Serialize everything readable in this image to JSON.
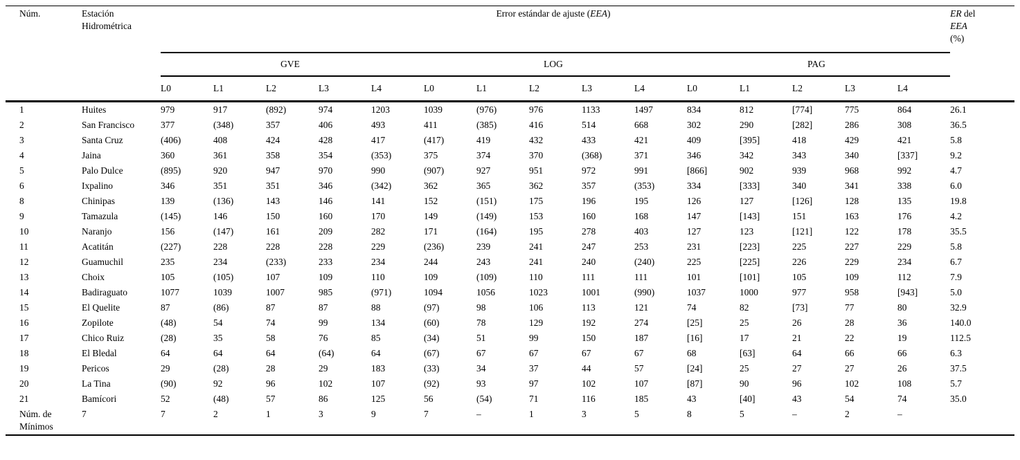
{
  "table": {
    "header": {
      "num": "Núm.",
      "station": "Estación Hidrométrica",
      "eea_prefix": "Error estándar de ajuste (",
      "eea_italic": "EEA",
      "eea_suffix": ")",
      "er_line1_italic": "ER",
      "er_line1_text": " del",
      "er_line2_italic": "EEA",
      "er_line3": "(%)",
      "groups": [
        "GVE",
        "LOG",
        "PAG"
      ],
      "levels": [
        "L0",
        "L1",
        "L2",
        "L3",
        "L4"
      ]
    },
    "rows": [
      {
        "num": "1",
        "station": "Huites",
        "values": [
          "979",
          "917",
          "(892)",
          "974",
          "1203",
          "1039",
          "(976)",
          "976",
          "1133",
          "1497",
          "834",
          "812",
          "[774]",
          "775",
          "864"
        ],
        "er": "26.1"
      },
      {
        "num": "2",
        "station": "San Francisco",
        "values": [
          "377",
          "(348)",
          "357",
          "406",
          "493",
          "411",
          "(385)",
          "416",
          "514",
          "668",
          "302",
          "290",
          "[282]",
          "286",
          "308"
        ],
        "er": "36.5"
      },
      {
        "num": "3",
        "station": "Santa Cruz",
        "values": [
          "(406)",
          "408",
          "424",
          "428",
          "417",
          "(417)",
          "419",
          "432",
          "433",
          "421",
          "409",
          "[395]",
          "418",
          "429",
          "421"
        ],
        "er": "5.8"
      },
      {
        "num": "4",
        "station": "Jaina",
        "values": [
          "360",
          "361",
          "358",
          "354",
          "(353)",
          "375",
          "374",
          "370",
          "(368)",
          "371",
          "346",
          "342",
          "343",
          "340",
          "[337]"
        ],
        "er": "9.2"
      },
      {
        "num": "5",
        "station": "Palo Dulce",
        "values": [
          "(895)",
          "920",
          "947",
          "970",
          "990",
          "(907)",
          "927",
          "951",
          "972",
          "991",
          "[866]",
          "902",
          "939",
          "968",
          "992"
        ],
        "er": "4.7"
      },
      {
        "num": "6",
        "station": "Ixpalino",
        "values": [
          "346",
          "351",
          "351",
          "346",
          "(342)",
          "362",
          "365",
          "362",
          "357",
          "(353)",
          "334",
          "[333]",
          "340",
          "341",
          "338"
        ],
        "er": "6.0"
      },
      {
        "num": "8",
        "station": "Chinipas",
        "values": [
          "139",
          "(136)",
          "143",
          "146",
          "141",
          "152",
          "(151)",
          "175",
          "196",
          "195",
          "126",
          "127",
          "[126]",
          "128",
          "135"
        ],
        "er": "19.8"
      },
      {
        "num": "9",
        "station": "Tamazula",
        "values": [
          "(145)",
          "146",
          "150",
          "160",
          "170",
          "149",
          "(149)",
          "153",
          "160",
          "168",
          "147",
          "[143]",
          "151",
          "163",
          "176"
        ],
        "er": "4.2"
      },
      {
        "num": "10",
        "station": "Naranjo",
        "values": [
          "156",
          "(147)",
          "161",
          "209",
          "282",
          "171",
          "(164)",
          "195",
          "278",
          "403",
          "127",
          "123",
          "[121]",
          "122",
          "178"
        ],
        "er": "35.5"
      },
      {
        "num": "11",
        "station": "Acatitán",
        "values": [
          "(227)",
          "228",
          "228",
          "228",
          "229",
          "(236)",
          "239",
          "241",
          "247",
          "253",
          "231",
          "[223]",
          "225",
          "227",
          "229"
        ],
        "er": "5.8"
      },
      {
        "num": "12",
        "station": "Guamuchil",
        "values": [
          "235",
          "234",
          "(233)",
          "233",
          "234",
          "244",
          "243",
          "241",
          "240",
          "(240)",
          "225",
          "[225]",
          "226",
          "229",
          "234"
        ],
        "er": "6.7"
      },
      {
        "num": "13",
        "station": "Choix",
        "values": [
          "105",
          "(105)",
          "107",
          "109",
          "110",
          "109",
          "(109)",
          "110",
          "111",
          "111",
          "101",
          "[101]",
          "105",
          "109",
          "112"
        ],
        "er": "7.9"
      },
      {
        "num": "14",
        "station": "Badiraguato",
        "values": [
          "1077",
          "1039",
          "1007",
          "985",
          "(971)",
          "1094",
          "1056",
          "1023",
          "1001",
          "(990)",
          "1037",
          "1000",
          "977",
          "958",
          "[943]"
        ],
        "er": "5.0"
      },
      {
        "num": "15",
        "station": "El Quelite",
        "values": [
          "87",
          "(86)",
          "87",
          "87",
          "88",
          "(97)",
          "98",
          "106",
          "113",
          "121",
          "74",
          "82",
          "[73]",
          "77",
          "80"
        ],
        "er": "32.9"
      },
      {
        "num": "16",
        "station": "Zopilote",
        "values": [
          "(48)",
          "54",
          "74",
          "99",
          "134",
          "(60)",
          "78",
          "129",
          "192",
          "274",
          "[25]",
          "25",
          "26",
          "28",
          "36"
        ],
        "er": "140.0"
      },
      {
        "num": "17",
        "station": "Chico Ruiz",
        "values": [
          "(28)",
          "35",
          "58",
          "76",
          "85",
          "(34)",
          "51",
          "99",
          "150",
          "187",
          "[16]",
          "17",
          "21",
          "22",
          "19"
        ],
        "er": "112.5"
      },
      {
        "num": "18",
        "station": "El Bledal",
        "values": [
          "64",
          "64",
          "64",
          "(64)",
          "64",
          "(67)",
          "67",
          "67",
          "67",
          "67",
          "68",
          "[63]",
          "64",
          "66",
          "66"
        ],
        "er": "6.3"
      },
      {
        "num": "19",
        "station": "Pericos",
        "values": [
          "29",
          "(28)",
          "28",
          "29",
          "183",
          "(33)",
          "34",
          "37",
          "44",
          "57",
          "[24]",
          "25",
          "27",
          "27",
          "26"
        ],
        "er": "37.5"
      },
      {
        "num": "20",
        "station": "La Tina",
        "values": [
          "(90)",
          "92",
          "96",
          "102",
          "107",
          "(92)",
          "93",
          "97",
          "102",
          "107",
          "[87]",
          "90",
          "96",
          "102",
          "108"
        ],
        "er": "5.7"
      },
      {
        "num": "21",
        "station": "Bamícori",
        "values": [
          "52",
          "(48)",
          "57",
          "86",
          "125",
          "56",
          "(54)",
          "71",
          "116",
          "185",
          "43",
          "[40]",
          "43",
          "54",
          "74"
        ],
        "er": "35.0"
      },
      {
        "num": "Núm. de Mínimos",
        "station": "7",
        "values": [
          "7",
          "2",
          "1",
          "3",
          "9",
          "7",
          "–",
          "1",
          "3",
          "5",
          "8",
          "5",
          "–",
          "2",
          "–"
        ],
        "er": ""
      }
    ]
  }
}
